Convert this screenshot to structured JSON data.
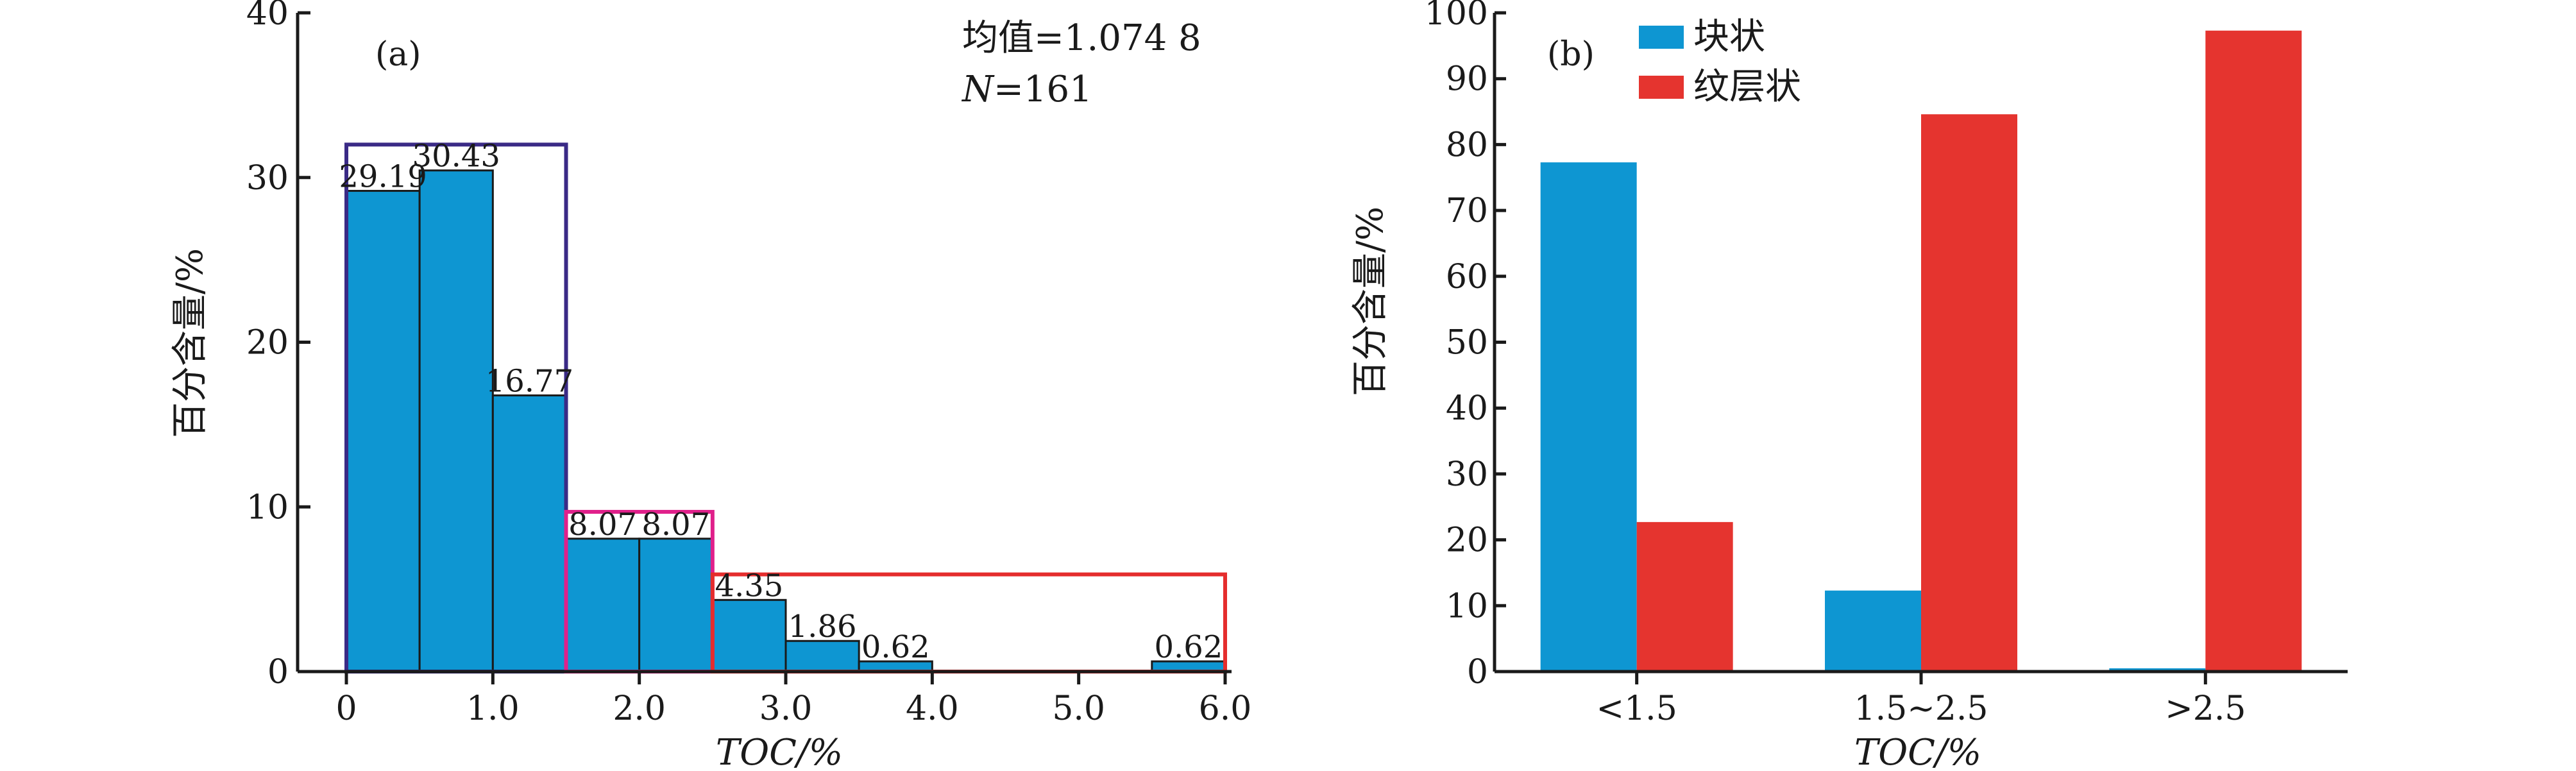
{
  "chart_data": [
    {
      "type": "bar",
      "panel_label": "(a)",
      "xlabel": "TOC/%",
      "ylabel": "百分含量/%",
      "xlim": [
        0,
        6
      ],
      "ylim": [
        0,
        40
      ],
      "x_ticks": [
        0,
        1,
        2,
        3,
        4,
        5,
        6
      ],
      "x_tick_labels": [
        "0",
        "1.0",
        "2.0",
        "3.0",
        "4.0",
        "5.0",
        "6.0"
      ],
      "y_ticks": [
        0,
        10,
        20,
        30,
        40
      ],
      "y_tick_labels": [
        "0",
        "10",
        "20",
        "30",
        "40"
      ],
      "bar_color": "#0e96d2",
      "bins": [
        {
          "x0": 0.0,
          "x1": 0.5,
          "value": 29.19,
          "label": "29.19"
        },
        {
          "x0": 0.5,
          "x1": 1.0,
          "value": 30.43,
          "label": "30.43"
        },
        {
          "x0": 1.0,
          "x1": 1.5,
          "value": 16.77,
          "label": "16.77"
        },
        {
          "x0": 1.5,
          "x1": 2.0,
          "value": 8.07,
          "label": "8.07"
        },
        {
          "x0": 2.0,
          "x1": 2.5,
          "value": 8.07,
          "label": "8.07"
        },
        {
          "x0": 2.5,
          "x1": 3.0,
          "value": 4.35,
          "label": "4.35"
        },
        {
          "x0": 3.0,
          "x1": 3.5,
          "value": 1.86,
          "label": "1.86"
        },
        {
          "x0": 3.5,
          "x1": 4.0,
          "value": 0.62,
          "label": "0.62"
        },
        {
          "x0": 5.5,
          "x1": 6.0,
          "value": 0.62,
          "label": "0.62"
        }
      ],
      "group_boxes": [
        {
          "x0": 0.0,
          "x1": 1.5,
          "value": 32.0,
          "color": "#3a2a86"
        },
        {
          "x0": 1.5,
          "x1": 2.5,
          "value": 9.7,
          "color": "#e0208a"
        },
        {
          "x0": 2.5,
          "x1": 6.0,
          "value": 5.9,
          "color": "#e52d2d"
        }
      ],
      "annotations": {
        "mean_label": "均值",
        "mean_value": "=1.074 8",
        "n_label": "N",
        "n_value": "=161"
      }
    },
    {
      "type": "bar",
      "panel_label": "(b)",
      "xlabel": "TOC/%",
      "ylabel": "百分含量/%",
      "ylim": [
        0,
        100
      ],
      "y_ticks": [
        0,
        10,
        20,
        30,
        40,
        50,
        60,
        70,
        80,
        90,
        100
      ],
      "y_tick_labels": [
        "0",
        "10",
        "20",
        "30",
        "40",
        "50",
        "60",
        "70",
        "80",
        "90",
        "100"
      ],
      "categories": [
        "<1.5",
        "1.5~2.5",
        ">2.5"
      ],
      "series": [
        {
          "name": "块状",
          "color": "#0e96d2",
          "values": [
            77.3,
            12.3,
            0.5
          ]
        },
        {
          "name": "纹层状",
          "color": "#e5342f",
          "values": [
            22.7,
            84.6,
            97.3
          ]
        }
      ],
      "legend_position": "top-left"
    }
  ]
}
